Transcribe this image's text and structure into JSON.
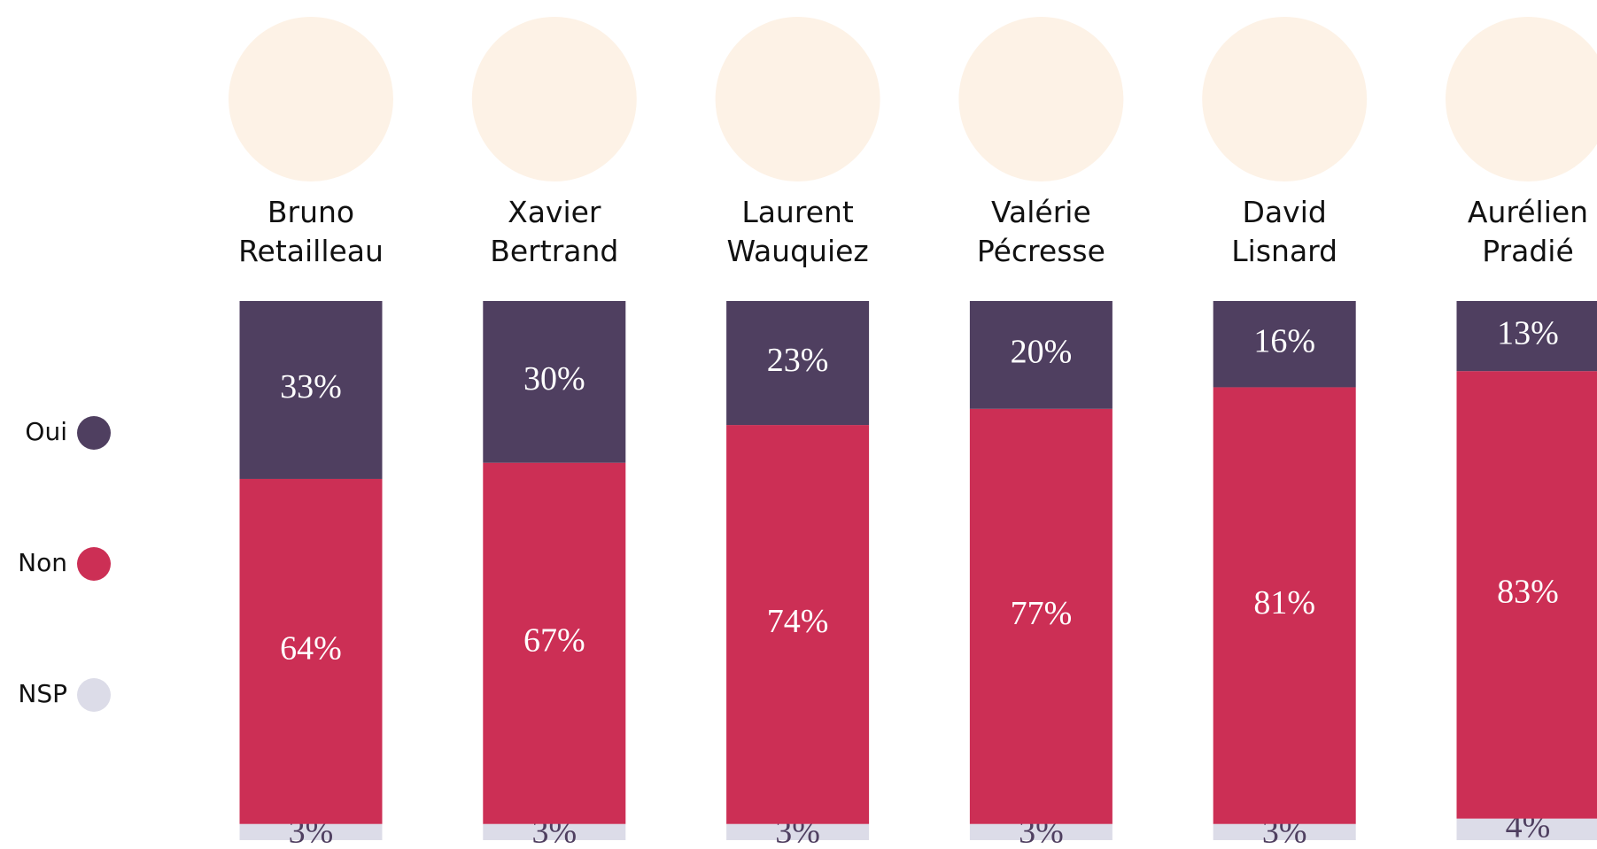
{
  "chart_data": {
    "type": "stacked-bar",
    "categories": [
      "Bruno Retailleau",
      "Xavier Bertrand",
      "Laurent Wauquiez",
      "Valérie Pécresse",
      "David Lisnard",
      "Aurélien Pradié"
    ],
    "series": [
      {
        "name": "Oui",
        "color": "#4f3f60",
        "values": [
          33,
          30,
          23,
          20,
          16,
          13
        ],
        "value_labels": [
          "33%",
          "30%",
          "23%",
          "20%",
          "16%",
          "13%"
        ]
      },
      {
        "name": "Non",
        "color": "#cc2f55",
        "values": [
          64,
          67,
          74,
          77,
          81,
          83
        ],
        "value_labels": [
          "64%",
          "67%",
          "74%",
          "77%",
          "81%",
          "83%"
        ]
      },
      {
        "name": "NSP",
        "color": "#dcdce8",
        "values": [
          3,
          3,
          3,
          3,
          3,
          4
        ],
        "value_labels": [
          "3%",
          "3%",
          "3%",
          "3%",
          "3%",
          "4%"
        ]
      }
    ],
    "ylim": [
      0,
      100
    ]
  }
}
